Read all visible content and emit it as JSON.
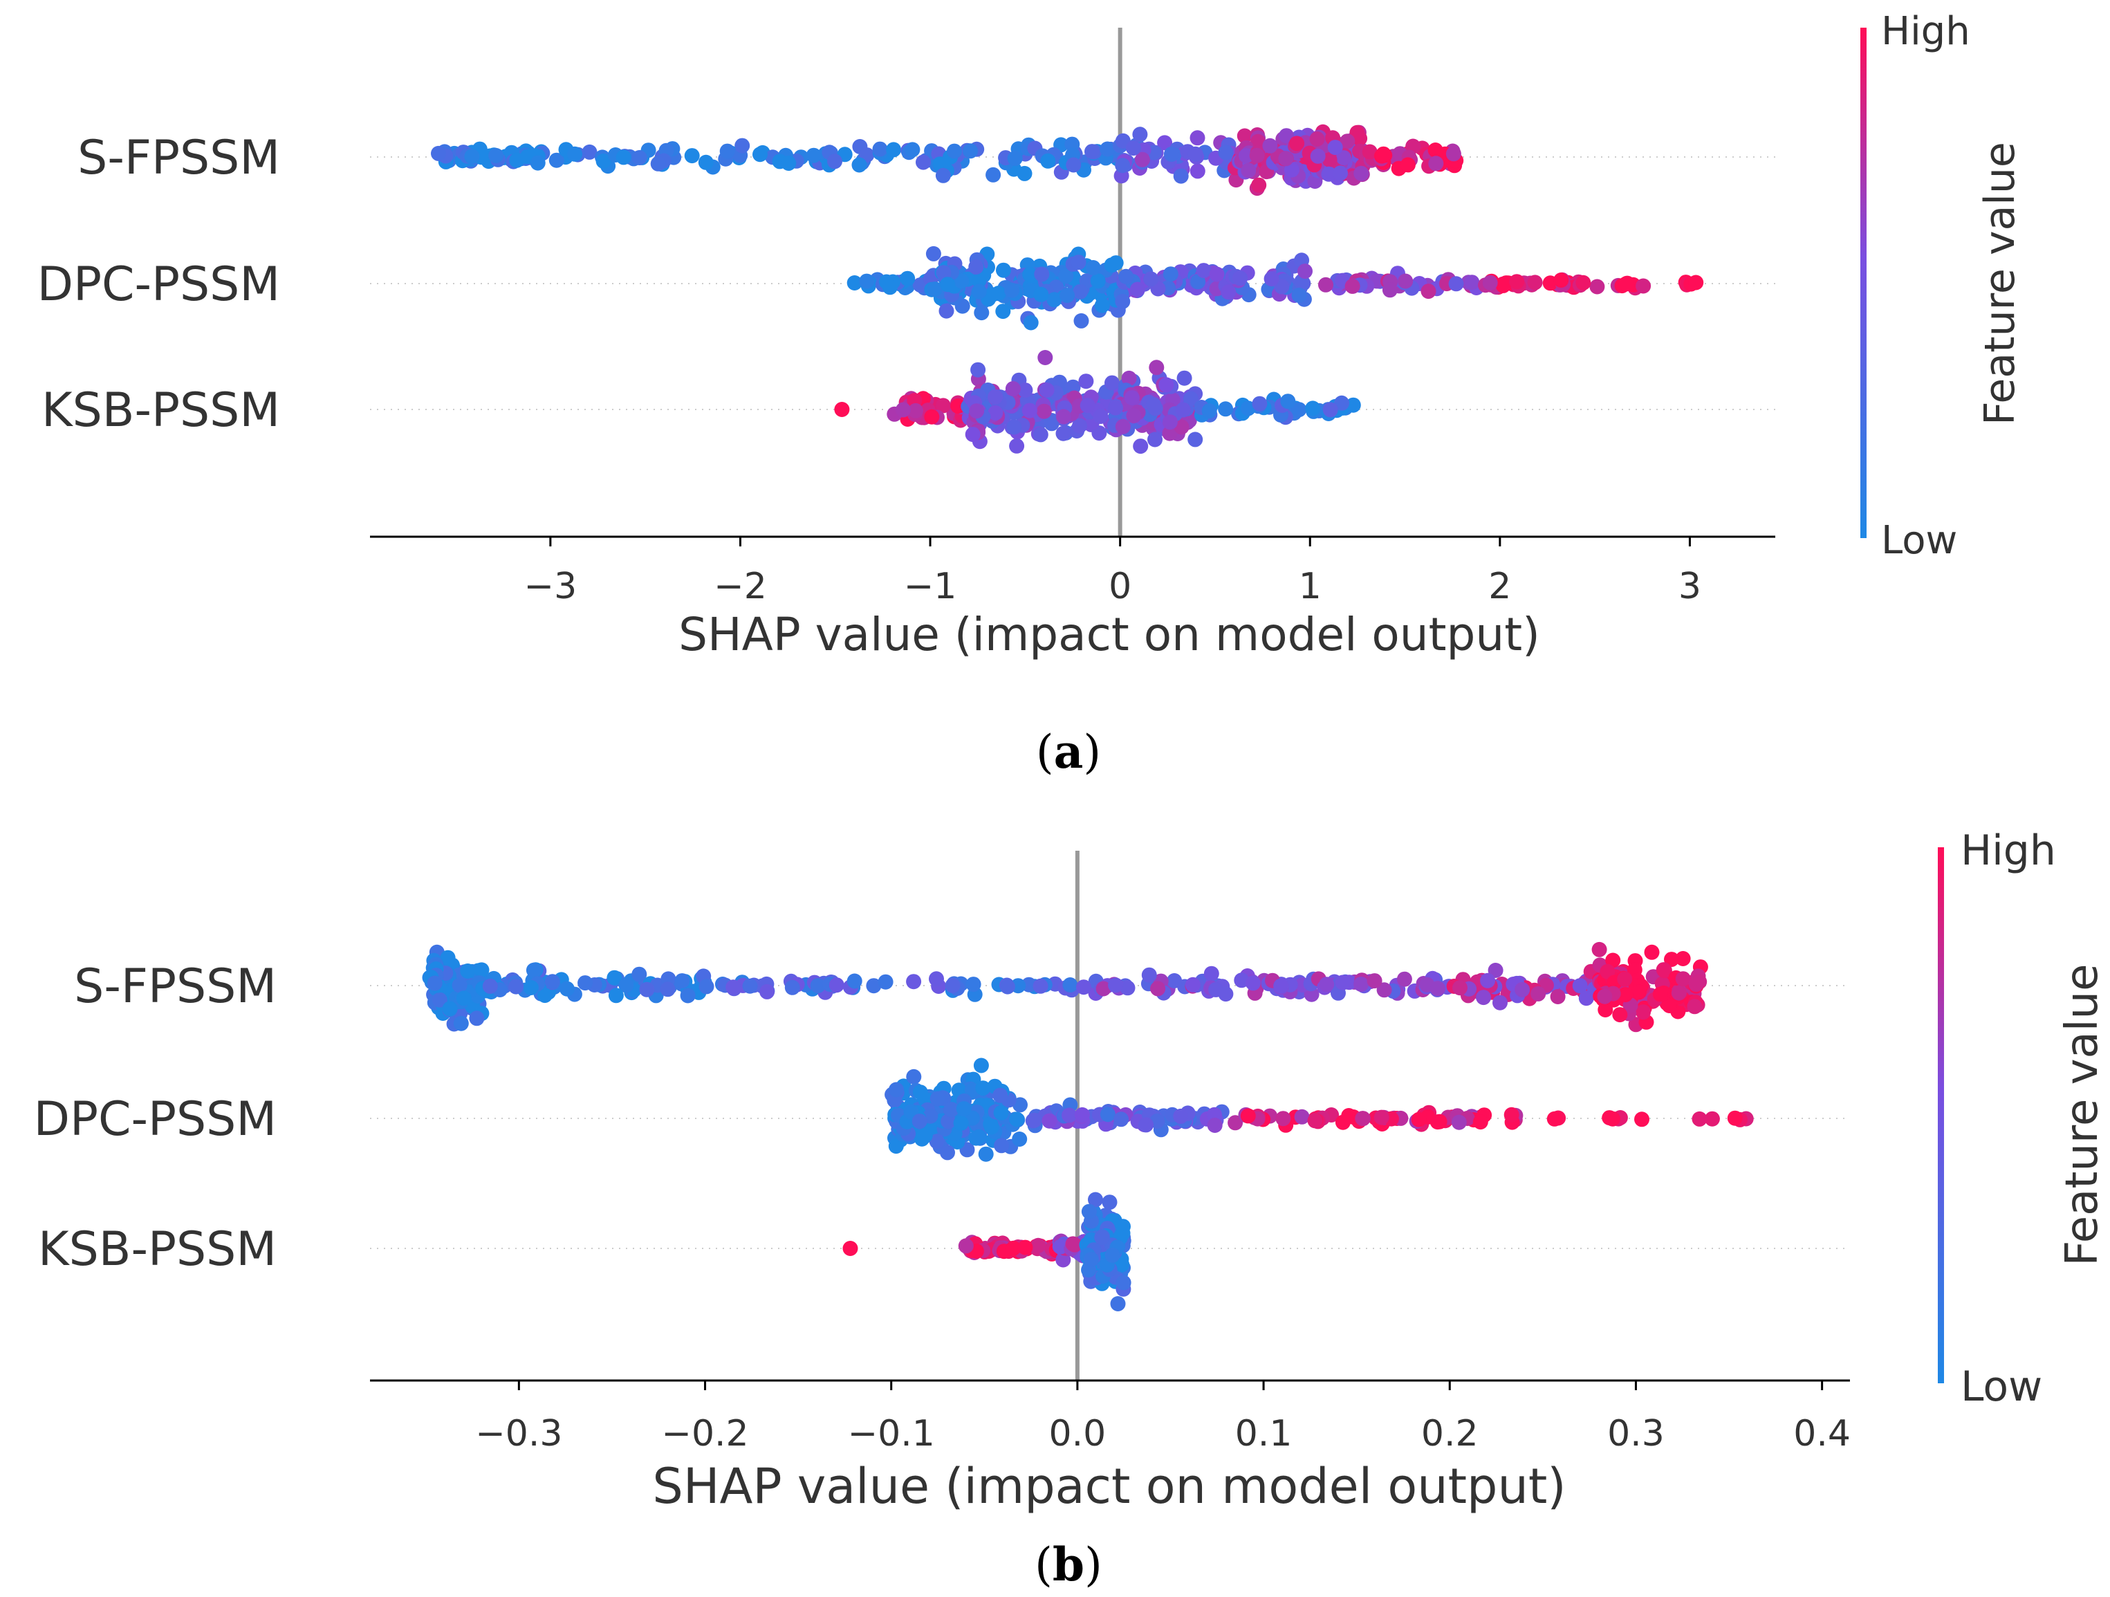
{
  "colors": {
    "low": "#1E88E5",
    "high": "#FF0D57",
    "axis": "#000000",
    "zero_line": "#999999",
    "grid": "#cccccc",
    "text": "#333333"
  },
  "chart_data": [
    {
      "type": "scatter",
      "subtype": "beeswarm",
      "caption_letter": "a",
      "xlabel": "SHAP value (impact on model output)",
      "xlim": [
        -3.95,
        3.45
      ],
      "xticks": [
        -3,
        -2,
        -1,
        0,
        1,
        2,
        3
      ],
      "xtick_labels": [
        "−3",
        "−2",
        "−1",
        "0",
        "1",
        "2",
        "3"
      ],
      "colorbar": {
        "label": "Feature value",
        "high_label": "High",
        "low_label": "Low"
      },
      "features": [
        {
          "name": "S-FPSSM",
          "mode": 1.0,
          "spread": 0.95,
          "low_bias": -1.2,
          "groups": [
            {
              "from": -3.62,
              "to": -2.9,
              "n": 55,
              "color": 0.05,
              "jitter": 0.07
            },
            {
              "from": -2.9,
              "to": -1.2,
              "n": 60,
              "color": 0.08,
              "jitter": 0.1
            },
            {
              "from": -1.2,
              "to": 0.0,
              "n": 60,
              "color": 0.15,
              "jitter": 0.15
            },
            {
              "from": 0.0,
              "to": 0.6,
              "n": 45,
              "color": 0.45,
              "jitter": 0.2
            },
            {
              "from": 0.6,
              "to": 1.3,
              "n": 160,
              "color": 0.72,
              "jitter": 0.25
            },
            {
              "from": 1.3,
              "to": 1.8,
              "n": 40,
              "color": 0.95,
              "jitter": 0.12
            }
          ]
        },
        {
          "name": "DPC-PSSM",
          "mode": -0.5,
          "spread": 0.95,
          "groups": [
            {
              "from": -1.45,
              "to": -1.0,
              "n": 20,
              "color": 0.05,
              "jitter": 0.06
            },
            {
              "from": -1.0,
              "to": 0.0,
              "n": 180,
              "color": 0.1,
              "jitter": 0.3
            },
            {
              "from": 0.0,
              "to": 1.0,
              "n": 100,
              "color": 0.4,
              "jitter": 0.18
            },
            {
              "from": 1.0,
              "to": 1.9,
              "n": 40,
              "color": 0.6,
              "jitter": 0.08
            },
            {
              "from": 1.9,
              "to": 2.8,
              "n": 40,
              "color": 0.95,
              "jitter": 0.06
            },
            {
              "from": 2.9,
              "to": 3.1,
              "n": 4,
              "color": 1.0,
              "jitter": 0.03
            }
          ]
        },
        {
          "name": "KSB-PSSM",
          "mode": -0.2,
          "spread": 0.95,
          "groups": [
            {
              "from": -1.48,
              "to": -1.45,
              "n": 1,
              "color": 1.0,
              "jitter": 0.0
            },
            {
              "from": -1.2,
              "to": -0.8,
              "n": 30,
              "color": 0.85,
              "jitter": 0.12
            },
            {
              "from": -0.8,
              "to": 0.4,
              "n": 260,
              "color": 0.5,
              "jitter": 0.3
            },
            {
              "from": 0.4,
              "to": 1.25,
              "n": 35,
              "color": 0.15,
              "jitter": 0.1
            }
          ]
        }
      ]
    },
    {
      "type": "scatter",
      "subtype": "beeswarm",
      "caption_letter": "b",
      "xlabel": "SHAP value (impact on model output)",
      "xlim": [
        -0.38,
        0.415
      ],
      "xticks": [
        -0.3,
        -0.2,
        -0.1,
        0.0,
        0.1,
        0.2,
        0.3,
        0.4
      ],
      "xtick_labels": [
        "−0.3",
        "−0.2",
        "−0.1",
        "0.0",
        "0.1",
        "0.2",
        "0.3",
        "0.4"
      ],
      "colorbar": {
        "label": "Feature value",
        "high_label": "High",
        "low_label": "Low"
      },
      "features": [
        {
          "name": "S-FPSSM",
          "mode": 0.31,
          "spread": 0.95,
          "groups": [
            {
              "from": -0.348,
              "to": -0.32,
              "n": 110,
              "color": 0.03,
              "jitter": 0.28
            },
            {
              "from": -0.32,
              "to": -0.2,
              "n": 70,
              "color": 0.1,
              "jitter": 0.12
            },
            {
              "from": -0.2,
              "to": 0.0,
              "n": 55,
              "color": 0.25,
              "jitter": 0.06
            },
            {
              "from": 0.0,
              "to": 0.2,
              "n": 90,
              "color": 0.55,
              "jitter": 0.08
            },
            {
              "from": 0.2,
              "to": 0.28,
              "n": 50,
              "color": 0.72,
              "jitter": 0.12
            },
            {
              "from": 0.28,
              "to": 0.335,
              "n": 90,
              "color": 0.97,
              "jitter": 0.28
            }
          ]
        },
        {
          "name": "DPC-PSSM",
          "mode": -0.04,
          "spread": 0.95,
          "groups": [
            {
              "from": -0.1,
              "to": -0.03,
              "n": 190,
              "color": 0.04,
              "jitter": 0.32
            },
            {
              "from": -0.03,
              "to": 0.08,
              "n": 70,
              "color": 0.4,
              "jitter": 0.08
            },
            {
              "from": 0.08,
              "to": 0.24,
              "n": 60,
              "color": 0.9,
              "jitter": 0.05
            },
            {
              "from": 0.25,
              "to": 0.38,
              "n": 12,
              "color": 1.0,
              "jitter": 0.02
            }
          ]
        },
        {
          "name": "KSB-PSSM",
          "mode": 0.013,
          "spread": 0.95,
          "groups": [
            {
              "from": -0.123,
              "to": -0.121,
              "n": 1,
              "color": 1.0,
              "jitter": 0.0
            },
            {
              "from": -0.06,
              "to": -0.01,
              "n": 55,
              "color": 0.95,
              "jitter": 0.06
            },
            {
              "from": -0.01,
              "to": 0.005,
              "n": 30,
              "color": 0.6,
              "jitter": 0.1
            },
            {
              "from": 0.005,
              "to": 0.025,
              "n": 120,
              "color": 0.1,
              "jitter": 0.35
            }
          ]
        }
      ]
    }
  ]
}
